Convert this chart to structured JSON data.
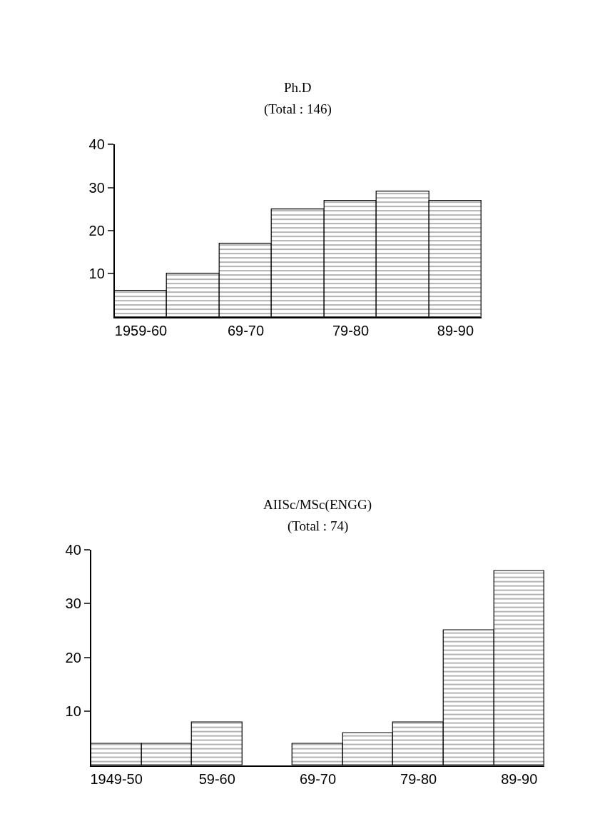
{
  "chart_data": [
    {
      "type": "bar",
      "title": "Ph.D",
      "subtitle": "(Total : 146)",
      "categories": [
        "1959-60",
        null,
        "69-70",
        null,
        "79-80",
        null,
        "89-90"
      ],
      "values": [
        6,
        10,
        17,
        25,
        27,
        29,
        27
      ],
      "color": "#000000",
      "ylim": [
        0,
        40
      ],
      "yticks": [
        10,
        20,
        30,
        40
      ]
    },
    {
      "type": "bar",
      "title": "AIISc/MSc(ENGG)",
      "subtitle": "(Total : 74)",
      "categories": [
        "1949-50",
        null,
        "59-60",
        null,
        "69-70",
        null,
        "79-80",
        null,
        "89-90"
      ],
      "values": [
        4,
        4,
        8,
        null,
        4,
        6,
        8,
        25,
        36
      ],
      "color": "#000000",
      "ylim": [
        0,
        40
      ],
      "yticks": [
        10,
        20,
        30,
        40
      ]
    }
  ]
}
